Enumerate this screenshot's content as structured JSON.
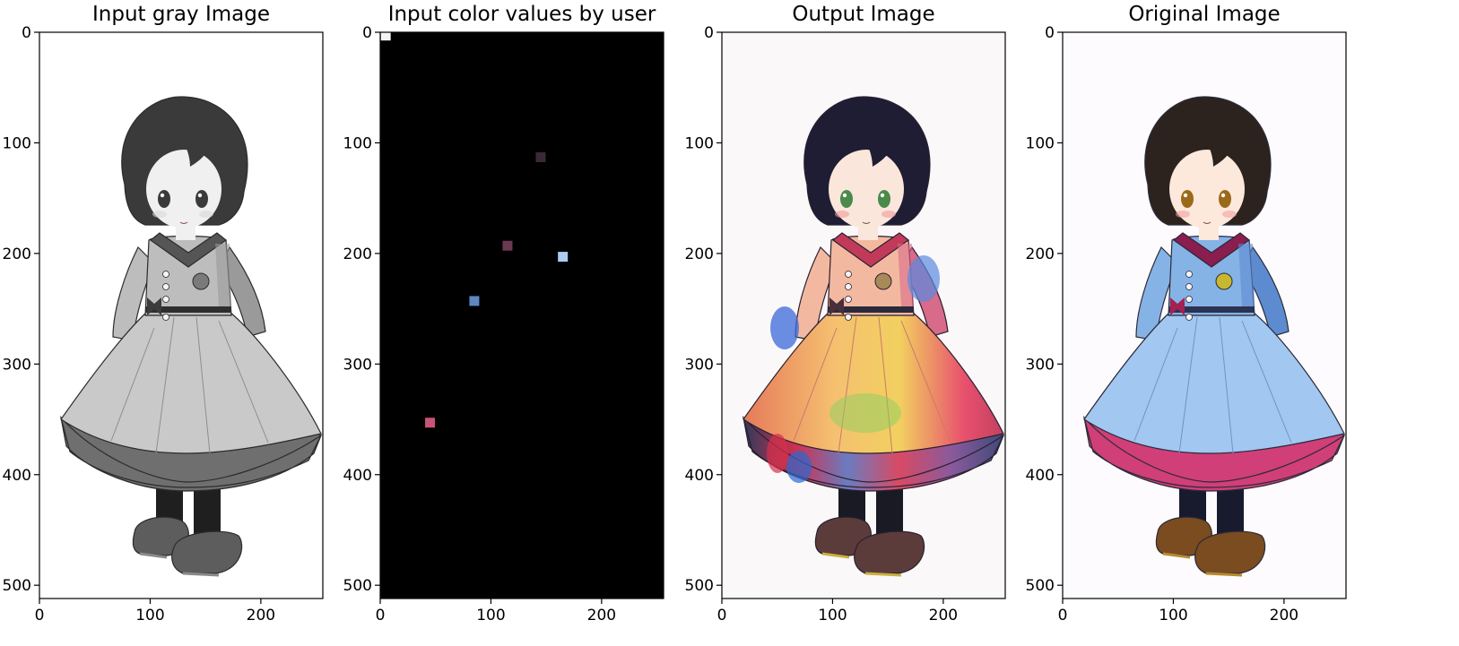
{
  "chart_data": [
    {
      "type": "image",
      "title": "Input gray Image",
      "content": "grayscale",
      "x_ticks": [
        0,
        100,
        200
      ],
      "y_ticks": [
        0,
        100,
        200,
        300,
        400,
        500
      ],
      "xlim": [
        0,
        256
      ],
      "ylim": [
        512,
        0
      ]
    },
    {
      "type": "image",
      "title": "Input color values by user",
      "content": "hints",
      "x_ticks": [
        0,
        100,
        200
      ],
      "y_ticks": [
        0,
        100,
        200,
        300,
        400,
        500
      ],
      "xlim": [
        0,
        256
      ],
      "ylim": [
        512,
        0
      ],
      "hints": [
        {
          "x": 5,
          "y": 3,
          "color": "#f4f4f4"
        },
        {
          "x": 145,
          "y": 113,
          "color": "#3a2a36"
        },
        {
          "x": 115,
          "y": 193,
          "color": "#6b3a52"
        },
        {
          "x": 165,
          "y": 203,
          "color": "#aecbf0"
        },
        {
          "x": 85,
          "y": 243,
          "color": "#5f86c4"
        },
        {
          "x": 45,
          "y": 353,
          "color": "#c95277"
        }
      ]
    },
    {
      "type": "image",
      "title": "Output Image",
      "content": "output",
      "x_ticks": [
        0,
        100,
        200
      ],
      "y_ticks": [
        0,
        100,
        200,
        300,
        400,
        500
      ],
      "xlim": [
        0,
        256
      ],
      "ylim": [
        512,
        0
      ]
    },
    {
      "type": "image",
      "title": "Original Image",
      "content": "original",
      "x_ticks": [
        0,
        100,
        200
      ],
      "y_ticks": [
        0,
        100,
        200,
        300,
        400,
        500
      ],
      "xlim": [
        0,
        256
      ],
      "ylim": [
        512,
        0
      ]
    }
  ]
}
